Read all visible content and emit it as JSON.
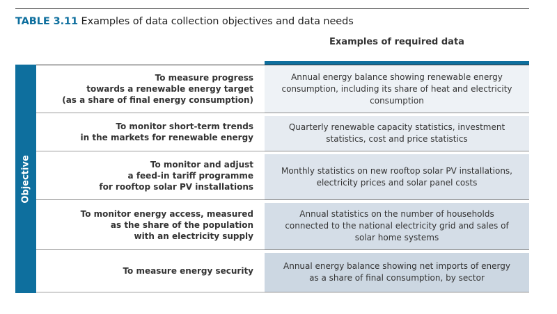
{
  "table": {
    "number": "TABLE 3.11",
    "caption": "Examples of data collection objectives and data needs",
    "column_header": "Examples of required data",
    "row_group_label": "Objective",
    "accent_color": "#0e6f9e",
    "rows": [
      {
        "objective": "To measure progress\ntowards a renewable energy target\n(as a share of final energy consumption)",
        "data_needs": "Annual energy balance showing renewable energy\nconsumption, including its share of heat and electricity\nconsumption",
        "cell_color": "#eef2f6"
      },
      {
        "objective": "To monitor short-term trends\nin the markets for renewable energy",
        "data_needs": "Quarterly renewable capacity statistics, investment\nstatistics, cost and price statistics",
        "cell_color": "#e6ebf1"
      },
      {
        "objective": "To monitor and adjust\na feed-in tariff programme\nfor rooftop solar PV installations",
        "data_needs": "Monthly statistics on new rooftop solar PV installations,\nelectricity prices and solar panel costs",
        "cell_color": "#dde4ec"
      },
      {
        "objective": "To monitor energy access, measured\nas the share of the population\nwith an electricity supply",
        "data_needs": "Annual statistics on the number of households\nconnected to the national electricity grid and sales of\nsolar home systems",
        "cell_color": "#d4dde7"
      },
      {
        "objective": "To measure energy security",
        "data_needs": "Annual energy balance showing net imports of energy\nas a share of final consumption, by sector",
        "cell_color": "#ccd7e2"
      }
    ]
  }
}
